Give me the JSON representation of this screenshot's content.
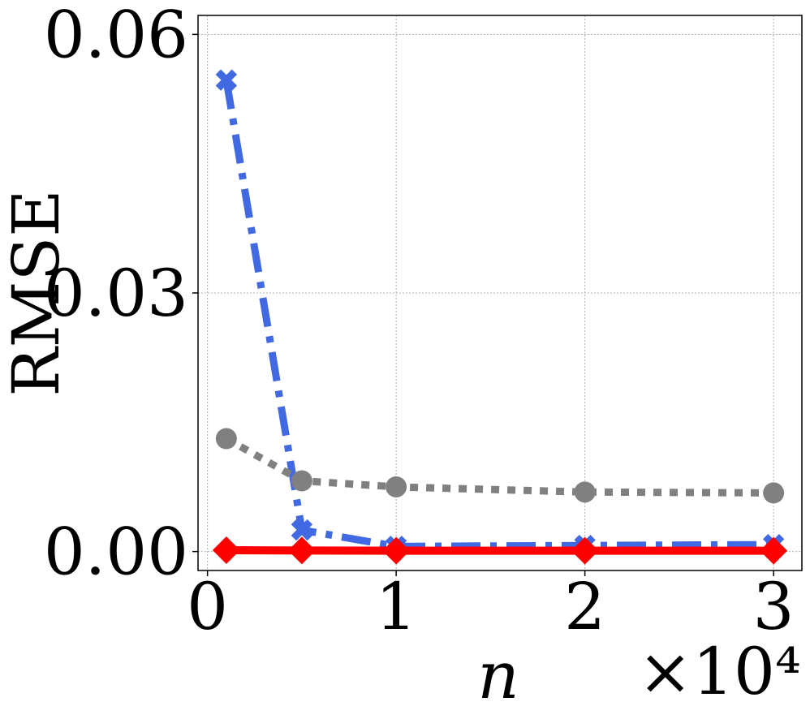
{
  "chart_data": {
    "type": "line",
    "xlabel": "n",
    "x_multiplier": "×10⁴",
    "ylabel": "RMSE",
    "x": [
      0.1,
      0.5,
      1,
      2,
      3
    ],
    "xlim": [
      -0.05,
      3.15
    ],
    "ylim": [
      -0.0022,
      0.0622
    ],
    "xticks": [
      0,
      1,
      2,
      3
    ],
    "xtick_labels": [
      "0",
      "1",
      "2",
      "3"
    ],
    "yticks": [
      0.0,
      0.03,
      0.06
    ],
    "ytick_labels": [
      "0.00",
      "0.03",
      "0.06"
    ],
    "grid": true,
    "series": [
      {
        "values": [
          0.0547,
          0.0025,
          0.0006,
          0.0007,
          0.0008
        ],
        "color": "#4169e1",
        "line_style": "dash-dot",
        "marker": "x"
      },
      {
        "values": [
          0.0131,
          0.0082,
          0.0075,
          0.0069,
          0.0068
        ],
        "color": "#808080",
        "line_style": "dotted",
        "marker": "circle"
      },
      {
        "values": [
          0.00015,
          0.00012,
          0.0001,
          0.0001,
          0.0001
        ],
        "color": "#ff0000",
        "line_style": "solid",
        "marker": "diamond"
      }
    ]
  }
}
